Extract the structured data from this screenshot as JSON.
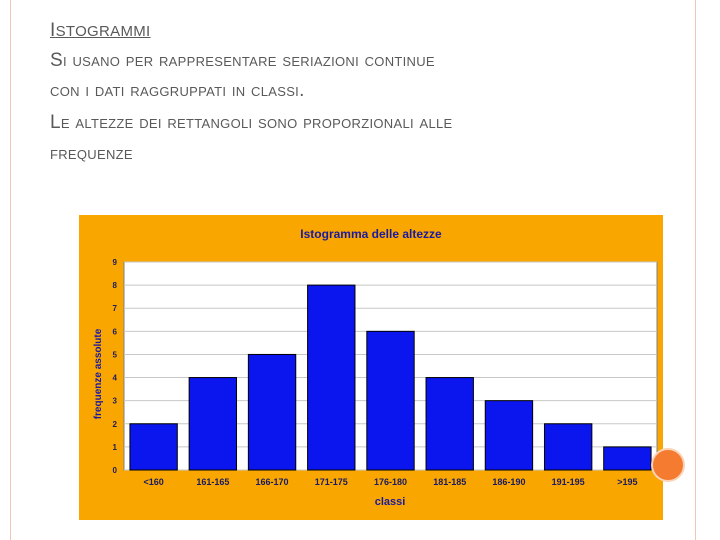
{
  "slide": {
    "heading_first": "I",
    "heading_rest": "STOGRAMMI",
    "bullets": [
      "Si usano per rappresentare seriazioni continue",
      "con i dati  raggruppati in classi.",
      "Le altezze dei rettangoli sono proporzionali alle",
      "frequenze"
    ]
  },
  "colors": {
    "panel": "#f9a600",
    "plot_area": "#ffffff",
    "bar": "#0b16ee",
    "text": "#595959",
    "chart_text": "#1a1aa0"
  },
  "chart_data": {
    "type": "bar",
    "title": "Istogramma delle altezze",
    "xlabel": "classi",
    "ylabel": "frequenze assolute",
    "categories": [
      "<160",
      "161-165",
      "166-170",
      "171-175",
      "176-180",
      "181-185",
      "186-190",
      "191-195",
      ">195"
    ],
    "values": [
      2,
      4,
      5,
      8,
      6,
      4,
      3,
      2,
      1
    ],
    "ylim": [
      0,
      9
    ],
    "yticks": [
      "0",
      "1",
      "2",
      "3",
      "4",
      "5",
      "6",
      "7",
      "8",
      "9"
    ],
    "grid": true,
    "legend": "none"
  }
}
